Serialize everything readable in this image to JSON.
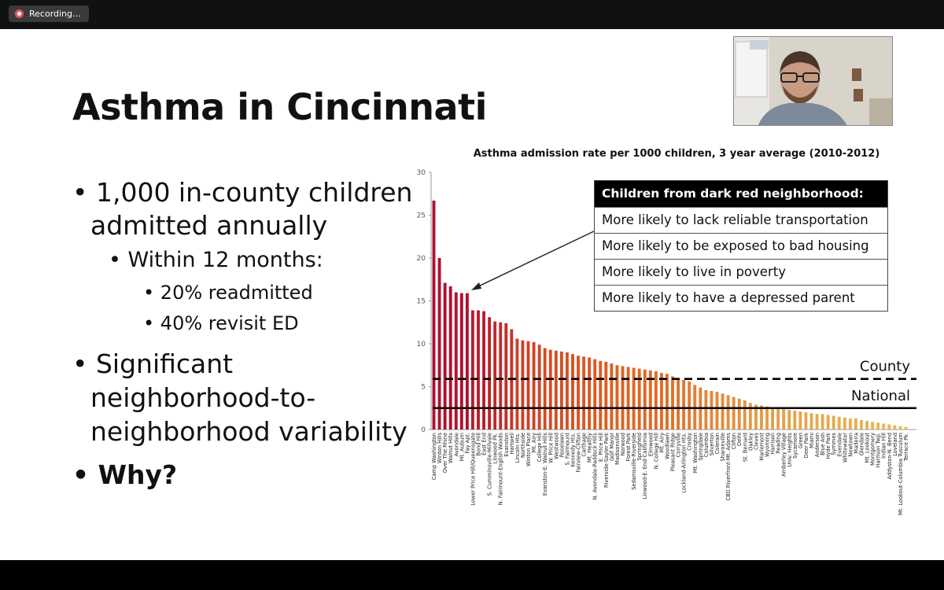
{
  "recording": {
    "label": "Recording..."
  },
  "slide": {
    "title": "Asthma in Cincinnati",
    "bullets": {
      "b1_line1": "1,000 in-county children",
      "b1_line2": "admitted annually",
      "b1_sub": "Within 12 months:",
      "b1_subsub1": "20% readmitted",
      "b1_subsub2": "40% revisit ED",
      "b2_line1": "Significant",
      "b2_line2": "neighborhood-to-",
      "b2_line3": "neighborhood variability",
      "b3": "Why?"
    },
    "callout": {
      "header": "Children from dark red neighborhood:",
      "rows": [
        "More likely to lack reliable transportation",
        "More likely to be exposed to bad housing",
        "More likely to live in poverty",
        "More likely to have a depressed parent"
      ]
    }
  },
  "colors": {
    "dark_red": "#b01030",
    "light_yellow": "#e6c060"
  },
  "webcam": {
    "description_icon": "presenter-video-icon"
  },
  "chart_data": {
    "type": "bar",
    "title": "Asthma admission rate per 1000 children, 3 year average (2010-2012)",
    "xlabel": "",
    "ylabel": "",
    "ylim": [
      0,
      30
    ],
    "yticks": [
      0,
      5,
      10,
      15,
      20,
      25,
      30
    ],
    "grid": false,
    "reference_lines": [
      {
        "name": "County",
        "value": 5.9,
        "style": "dashed"
      },
      {
        "name": "National",
        "value": 2.5,
        "style": "solid"
      }
    ],
    "categories": [
      "Camp Washington",
      "Winton Hills",
      "Over The Rhine",
      "Walnut Hills",
      "Avondale",
      "Mt. Auburn",
      "Fay Apt.",
      "Lower Price Hill/Queensgate",
      "Bond Hill",
      "East End",
      "S. Cumminsville-Millvale",
      "Linwood Pk.",
      "N. Fairmount-English Woods",
      "Evanston",
      "Hartwell",
      "Lincoln Hts.",
      "Northside",
      "Winton Place",
      "Mt. Airy",
      "College Hill",
      "Evanston-E. Walnut Hills",
      "W. Price Hill",
      "Westwood",
      "Roselawn",
      "S. Fairmount",
      "Kennedy Hts.",
      "Fairview-Clifton",
      "Carthage",
      "Mt. Healthy",
      "N. Avondale-Paddock Hills",
      "E. Price Hill",
      "Riverside-Sayler Park",
      "Golf Manor",
      "Madisonville",
      "Norwood",
      "Forest Park",
      "Sedamsville-Riverside",
      "Springfield",
      "Linwood-E. End-California",
      "Elmwood",
      "N. College Hill",
      "Mt. Airy",
      "Woodlawn",
      "Pleasant Ridge",
      "Corryville",
      "Lockland-Arlington Hts.",
      "Crosby",
      "Mt. Washington",
      "Springdale",
      "Columbia",
      "Silverton",
      "Colerain",
      "Sharonville",
      "CBD Riverfront-Mt. Adams",
      "Clifton",
      "Delhi",
      "St. Bernard",
      "Oakley",
      "Cleves",
      "Mariemont",
      "Wyoming",
      "Harrison",
      "Reading",
      "Amberley Village",
      "Univ. Heights",
      "Sycamore",
      "Green",
      "Deer Park",
      "Miami",
      "Anderson",
      "Blue Ash",
      "Hyde Park",
      "Symmes",
      "Evendale",
      "Whitewater",
      "Newtown",
      "Madeira",
      "Glendale",
      "Mt. Lookout",
      "Montgomery",
      "Harrison Twp.",
      "Indian Hill",
      "Addyston-N. Bend",
      "Loveland",
      "Mt. Lookout-Columbia Tusculum",
      "Terrace Pk."
    ],
    "values": [
      26.7,
      20.0,
      17.1,
      16.7,
      16.0,
      15.9,
      15.9,
      13.9,
      13.9,
      13.8,
      13.1,
      12.6,
      12.5,
      12.4,
      11.7,
      10.6,
      10.4,
      10.3,
      10.2,
      9.9,
      9.5,
      9.3,
      9.2,
      9.1,
      9.0,
      8.8,
      8.6,
      8.5,
      8.4,
      8.2,
      8.0,
      7.9,
      7.7,
      7.5,
      7.4,
      7.3,
      7.2,
      7.1,
      7.0,
      6.9,
      6.8,
      6.6,
      6.5,
      6.2,
      6.0,
      5.8,
      5.6,
      5.2,
      4.9,
      4.6,
      4.5,
      4.4,
      4.2,
      4.0,
      3.8,
      3.6,
      3.4,
      3.1,
      2.9,
      2.8,
      2.7,
      2.6,
      2.5,
      2.4,
      2.3,
      2.2,
      2.1,
      2.0,
      1.9,
      1.8,
      1.8,
      1.7,
      1.6,
      1.5,
      1.4,
      1.3,
      1.3,
      1.1,
      1.0,
      0.9,
      0.8,
      0.7,
      0.6,
      0.5,
      0.4,
      0.3
    ],
    "annotations": [
      "Children from dark red neighborhood"
    ]
  }
}
